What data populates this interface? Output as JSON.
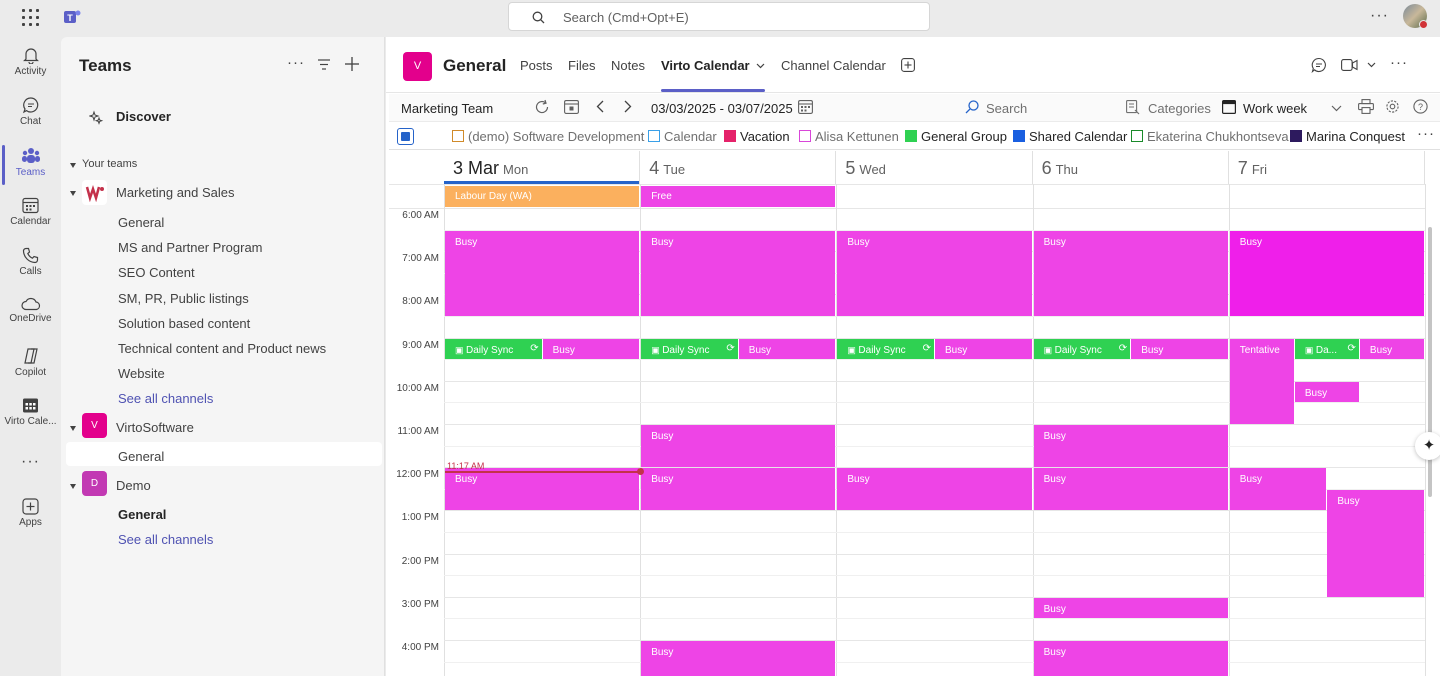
{
  "topbar": {
    "search_placeholder": "Search (Cmd+Opt+E)",
    "more": "···"
  },
  "rail": [
    {
      "label": "Activity",
      "icon": "bell-icon"
    },
    {
      "label": "Chat",
      "icon": "chat-icon"
    },
    {
      "label": "Teams",
      "icon": "teams-icon",
      "active": true
    },
    {
      "label": "Calendar",
      "icon": "calendar-icon"
    },
    {
      "label": "Calls",
      "icon": "phone-icon"
    },
    {
      "label": "OneDrive",
      "icon": "cloud-icon"
    },
    {
      "label": "Copilot",
      "icon": "copilot-icon"
    },
    {
      "label": "Virto Cale...",
      "icon": "virto-calendar-icon"
    },
    {
      "label": "···",
      "icon": "more-icon"
    },
    {
      "label": "Apps",
      "icon": "apps-icon"
    }
  ],
  "sidebar": {
    "title": "Teams",
    "discover": "Discover",
    "your_teams": "Your teams",
    "teams": [
      {
        "name": "Marketing and Sales",
        "channels": [
          "General",
          "MS and Partner Program",
          "SEO Content",
          "SM, PR, Public listings",
          "Solution based content",
          "Technical content and Product news",
          "Website"
        ],
        "see_all": "See all channels"
      },
      {
        "name": "VirtoSoftware",
        "avatar": "V",
        "color": "#e3008c",
        "channels": [
          "General"
        ]
      },
      {
        "name": "Demo",
        "avatar": "D",
        "color": "#c239b3",
        "channels": [
          "General"
        ],
        "see_all": "See all channels"
      }
    ]
  },
  "channel": {
    "avatar": "V",
    "title": "General",
    "tabs": [
      "Posts",
      "Files",
      "Notes",
      "Virto Calendar",
      "Channel Calendar"
    ],
    "active_tab": "Virto Calendar"
  },
  "toolbar": {
    "calendar_name": "Marketing Team",
    "date_range": "03/03/2025 - 03/07/2025",
    "search": "Search",
    "categories": "Categories",
    "view": "Work week"
  },
  "legend": [
    {
      "label": "(demo) Software Development",
      "color": "#d08a2a",
      "filled": false,
      "muted": true
    },
    {
      "label": "Calendar",
      "color": "#3aa0e8",
      "filled": false,
      "muted": true
    },
    {
      "label": "Vacation",
      "color": "#e5226a",
      "filled": true,
      "muted": false
    },
    {
      "label": "Alisa Kettunen",
      "color": "#d946d9",
      "filled": false,
      "muted": true
    },
    {
      "label": "General Group",
      "color": "#2fd152",
      "filled": true,
      "muted": false
    },
    {
      "label": "Shared Calendar",
      "color": "#1a5fe0",
      "filled": true,
      "muted": false
    },
    {
      "label": "Ekaterina Chukhontseva",
      "color": "#1a8a2a",
      "filled": false,
      "muted": true
    },
    {
      "label": "Marina Conquest",
      "color": "#2d1a5e",
      "filled": true,
      "muted": false
    }
  ],
  "calendar": {
    "days": [
      {
        "num": "3 Mar",
        "wd": "Mon",
        "today": true
      },
      {
        "num": "4",
        "wd": "Tue"
      },
      {
        "num": "5",
        "wd": "Wed"
      },
      {
        "num": "6",
        "wd": "Thu"
      },
      {
        "num": "7",
        "wd": "Fri"
      }
    ],
    "allday": [
      {
        "day": 0,
        "title": "Labour Day (WA)",
        "color": "#fbb05e"
      },
      {
        "day": 1,
        "title": "Free",
        "color": "#ee44e6"
      }
    ],
    "times": [
      "6:00 AM",
      "7:00 AM",
      "8:00 AM",
      "9:00 AM",
      "10:00 AM",
      "11:00 AM",
      "12:00 PM",
      "1:00 PM",
      "2:00 PM",
      "3:00 PM",
      "4:00 PM"
    ],
    "start_hour": 6,
    "now_label": "11:17 AM",
    "events": [
      {
        "day": 0,
        "start": 6.5,
        "end": 8.5,
        "title": "Busy",
        "style": "pink"
      },
      {
        "day": 1,
        "start": 6.5,
        "end": 8.5,
        "title": "Busy",
        "style": "pink"
      },
      {
        "day": 2,
        "start": 6.5,
        "end": 8.5,
        "title": "Busy",
        "style": "pink"
      },
      {
        "day": 3,
        "start": 6.5,
        "end": 8.5,
        "title": "Busy",
        "style": "pink"
      },
      {
        "day": 4,
        "start": 6.5,
        "end": 8.5,
        "title": "Busy",
        "style": "mag"
      },
      {
        "day": 0,
        "start": 9.0,
        "end": 9.5,
        "title": "Daily Sync",
        "style": "green",
        "col": 0,
        "cols": 2,
        "icons": true
      },
      {
        "day": 0,
        "start": 9.0,
        "end": 9.5,
        "title": "Busy",
        "style": "pink",
        "col": 1,
        "cols": 2
      },
      {
        "day": 1,
        "start": 9.0,
        "end": 9.5,
        "title": "Daily Sync",
        "style": "green",
        "col": 0,
        "cols": 2,
        "icons": true
      },
      {
        "day": 1,
        "start": 9.0,
        "end": 9.5,
        "title": "Busy",
        "style": "pink",
        "col": 1,
        "cols": 2
      },
      {
        "day": 2,
        "start": 9.0,
        "end": 9.5,
        "title": "Daily Sync",
        "style": "green",
        "col": 0,
        "cols": 2,
        "icons": true
      },
      {
        "day": 2,
        "start": 9.0,
        "end": 9.5,
        "title": "Busy",
        "style": "pink",
        "col": 1,
        "cols": 2
      },
      {
        "day": 3,
        "start": 9.0,
        "end": 9.5,
        "title": "Daily Sync",
        "style": "green",
        "col": 0,
        "cols": 2,
        "icons": true
      },
      {
        "day": 3,
        "start": 9.0,
        "end": 9.5,
        "title": "Busy",
        "style": "pink",
        "col": 1,
        "cols": 2
      },
      {
        "day": 4,
        "start": 9.0,
        "end": 11.0,
        "title": "Tentative",
        "style": "pink",
        "col": 0,
        "cols": 3
      },
      {
        "day": 4,
        "start": 9.0,
        "end": 9.5,
        "title": "Da...",
        "style": "green",
        "col": 1,
        "cols": 3,
        "icons": true
      },
      {
        "day": 4,
        "start": 9.0,
        "end": 9.5,
        "title": "Busy",
        "style": "pink",
        "col": 2,
        "cols": 3
      },
      {
        "day": 4,
        "start": 10.0,
        "end": 10.5,
        "title": "Busy",
        "style": "pink",
        "col": 1,
        "cols": 3
      },
      {
        "day": 1,
        "start": 11.0,
        "end": 12.0,
        "title": "Busy",
        "style": "pink"
      },
      {
        "day": 3,
        "start": 11.0,
        "end": 12.0,
        "title": "Busy",
        "style": "pink"
      },
      {
        "day": 0,
        "start": 12.0,
        "end": 13.0,
        "title": "Busy",
        "style": "pink"
      },
      {
        "day": 1,
        "start": 12.0,
        "end": 13.0,
        "title": "Busy",
        "style": "pink"
      },
      {
        "day": 2,
        "start": 12.0,
        "end": 13.0,
        "title": "Busy",
        "style": "pink"
      },
      {
        "day": 3,
        "start": 12.0,
        "end": 13.0,
        "title": "Busy",
        "style": "pink"
      },
      {
        "day": 4,
        "start": 12.0,
        "end": 13.0,
        "title": "Busy",
        "style": "pink",
        "col": 0,
        "cols": 2
      },
      {
        "day": 4,
        "start": 12.5,
        "end": 15.0,
        "title": "Busy",
        "style": "pink",
        "col": 1,
        "cols": 2
      },
      {
        "day": 3,
        "start": 15.0,
        "end": 15.5,
        "title": "Busy",
        "style": "pink"
      },
      {
        "day": 1,
        "start": 16.0,
        "end": 17.0,
        "title": "Busy",
        "style": "pink"
      },
      {
        "day": 3,
        "start": 16.0,
        "end": 17.0,
        "title": "Busy",
        "style": "pink"
      }
    ]
  }
}
